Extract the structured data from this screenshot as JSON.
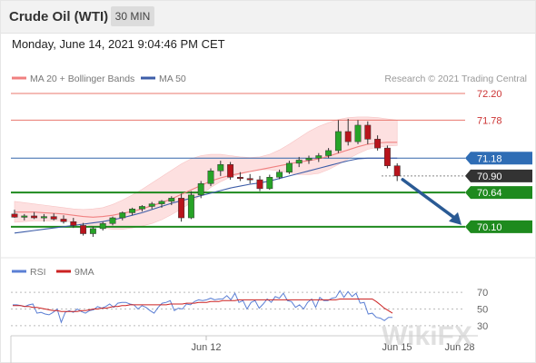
{
  "header": {
    "title": "Crude Oil (WTI)",
    "timeframe": "30 MIN"
  },
  "datetime": "Monday, June 14, 2021 9:04:46 PM CET",
  "legend": {
    "ma20": "MA 20 + Bollinger Bands",
    "ma50": "MA 50",
    "credit": "Research © 2021 Trading Central",
    "rsi": "RSI",
    "ma9": "9MA"
  },
  "watermark": "WikiFX",
  "colors": {
    "up": "#27a327",
    "down": "#b8141c",
    "resistance": "#e8776e",
    "support": "#1e8a1e",
    "ma20": "#f08080",
    "ma50": "#3d5da8",
    "band": "#fde0e0",
    "current": "#333333",
    "pivot": "#3366aa",
    "arrow": "#2a5a94",
    "rsi": "#5b7fd4",
    "ma9": "#cc2222"
  },
  "chart_data": [
    {
      "type": "candlestick",
      "x_ticks": [
        "Jun 12",
        "Jun 15",
        "Jun 28"
      ],
      "ylim": [
        69.84,
        72.3
      ],
      "levels": [
        {
          "value": 72.2,
          "label": "72.20",
          "kind": "resistance"
        },
        {
          "value": 71.78,
          "label": "71.78",
          "kind": "resistance"
        },
        {
          "value": 71.18,
          "label": "71.18",
          "kind": "pivot"
        },
        {
          "value": 70.9,
          "label": "70.90",
          "kind": "current"
        },
        {
          "value": 70.64,
          "label": "70.64",
          "kind": "support"
        },
        {
          "value": 70.1,
          "label": "70.10",
          "kind": "support"
        }
      ],
      "series": [
        {
          "name": "MA 20 + Bollinger Bands",
          "ma": [
            70.33,
            70.33,
            70.33,
            70.32,
            70.31,
            70.3,
            70.28,
            70.26,
            70.25,
            70.26,
            70.28,
            70.31,
            70.34,
            70.38,
            70.43,
            70.48,
            70.54,
            70.61,
            70.68,
            70.75,
            70.82,
            70.87,
            70.91,
            70.94,
            70.97,
            71.0,
            71.03,
            71.06,
            71.09,
            71.12,
            71.14,
            71.17,
            71.21,
            71.26,
            71.31,
            71.36,
            71.4,
            71.42,
            71.43,
            71.43
          ],
          "upper": [
            70.5,
            70.48,
            70.46,
            70.44,
            70.42,
            70.4,
            70.38,
            70.37,
            70.38,
            70.4,
            70.45,
            70.52,
            70.6,
            70.69,
            70.79,
            70.89,
            70.99,
            71.09,
            71.17,
            71.22,
            71.24,
            71.24,
            71.22,
            71.2,
            71.19,
            71.2,
            71.24,
            71.31,
            71.4,
            71.5,
            71.6,
            71.68,
            71.74,
            71.79,
            71.82,
            71.83,
            71.83,
            71.82,
            71.8,
            71.78
          ],
          "lower": [
            70.17,
            70.18,
            70.19,
            70.19,
            70.19,
            70.19,
            70.17,
            70.14,
            70.11,
            70.08,
            70.06,
            70.06,
            70.08,
            70.11,
            70.15,
            70.21,
            70.29,
            70.38,
            70.48,
            70.6,
            70.72,
            70.81,
            70.88,
            70.93,
            70.97,
            71.0,
            71.0,
            70.98,
            70.95,
            70.92,
            70.92,
            70.94,
            71.0,
            71.08,
            71.17,
            71.25,
            71.32,
            71.35,
            71.37,
            71.38
          ]
        },
        {
          "name": "MA 50",
          "values": [
            70.0,
            70.02,
            70.04,
            70.06,
            70.08,
            70.1,
            70.12,
            70.14,
            70.16,
            70.18,
            70.21,
            70.24,
            70.28,
            70.32,
            70.37,
            70.42,
            70.47,
            70.51,
            70.55,
            70.59,
            70.63,
            70.67,
            70.71,
            70.74,
            70.77,
            70.79,
            70.82,
            70.86,
            70.9,
            70.94,
            70.98,
            71.02,
            71.06,
            71.1,
            71.14,
            71.17,
            71.18,
            71.18,
            71.18,
            71.18
          ]
        }
      ],
      "candles": [
        {
          "o": 70.3,
          "h": 70.37,
          "l": 70.24,
          "c": 70.25
        },
        {
          "o": 70.25,
          "h": 70.3,
          "l": 70.2,
          "c": 70.27
        },
        {
          "o": 70.27,
          "h": 70.33,
          "l": 70.22,
          "c": 70.24
        },
        {
          "o": 70.24,
          "h": 70.3,
          "l": 70.18,
          "c": 70.26
        },
        {
          "o": 70.26,
          "h": 70.31,
          "l": 70.2,
          "c": 70.22
        },
        {
          "o": 70.22,
          "h": 70.28,
          "l": 70.15,
          "c": 70.18
        },
        {
          "o": 70.18,
          "h": 70.24,
          "l": 70.08,
          "c": 70.12
        },
        {
          "o": 70.12,
          "h": 70.16,
          "l": 69.96,
          "c": 69.99
        },
        {
          "o": 69.99,
          "h": 70.1,
          "l": 69.94,
          "c": 70.07
        },
        {
          "o": 70.07,
          "h": 70.18,
          "l": 70.04,
          "c": 70.15
        },
        {
          "o": 70.15,
          "h": 70.26,
          "l": 70.12,
          "c": 70.24
        },
        {
          "o": 70.24,
          "h": 70.34,
          "l": 70.2,
          "c": 70.32
        },
        {
          "o": 70.32,
          "h": 70.4,
          "l": 70.28,
          "c": 70.38
        },
        {
          "o": 70.38,
          "h": 70.44,
          "l": 70.34,
          "c": 70.42
        },
        {
          "o": 70.42,
          "h": 70.49,
          "l": 70.38,
          "c": 70.46
        },
        {
          "o": 70.46,
          "h": 70.52,
          "l": 70.4,
          "c": 70.5
        },
        {
          "o": 70.5,
          "h": 70.58,
          "l": 70.44,
          "c": 70.55
        },
        {
          "o": 70.55,
          "h": 70.62,
          "l": 70.18,
          "c": 70.24
        },
        {
          "o": 70.24,
          "h": 70.66,
          "l": 70.22,
          "c": 70.6
        },
        {
          "o": 70.6,
          "h": 70.82,
          "l": 70.55,
          "c": 70.78
        },
        {
          "o": 70.78,
          "h": 71.02,
          "l": 70.74,
          "c": 70.98
        },
        {
          "o": 70.98,
          "h": 71.14,
          "l": 70.9,
          "c": 71.08
        },
        {
          "o": 71.08,
          "h": 71.12,
          "l": 70.84,
          "c": 70.88
        },
        {
          "o": 70.88,
          "h": 70.96,
          "l": 70.82,
          "c": 70.86
        },
        {
          "o": 70.86,
          "h": 70.93,
          "l": 70.78,
          "c": 70.84
        },
        {
          "o": 70.84,
          "h": 70.9,
          "l": 70.66,
          "c": 70.7
        },
        {
          "o": 70.7,
          "h": 70.92,
          "l": 70.68,
          "c": 70.88
        },
        {
          "o": 70.88,
          "h": 71.0,
          "l": 70.85,
          "c": 70.96
        },
        {
          "o": 70.96,
          "h": 71.14,
          "l": 70.93,
          "c": 71.1
        },
        {
          "o": 71.1,
          "h": 71.2,
          "l": 71.04,
          "c": 71.15
        },
        {
          "o": 71.15,
          "h": 71.22,
          "l": 71.09,
          "c": 71.18
        },
        {
          "o": 71.18,
          "h": 71.26,
          "l": 71.12,
          "c": 71.22
        },
        {
          "o": 71.22,
          "h": 71.34,
          "l": 71.18,
          "c": 71.3
        },
        {
          "o": 71.3,
          "h": 71.78,
          "l": 71.26,
          "c": 71.6
        },
        {
          "o": 71.6,
          "h": 71.8,
          "l": 71.38,
          "c": 71.44
        },
        {
          "o": 71.44,
          "h": 71.78,
          "l": 71.4,
          "c": 71.7
        },
        {
          "o": 71.7,
          "h": 71.76,
          "l": 71.4,
          "c": 71.48
        },
        {
          "o": 71.48,
          "h": 71.54,
          "l": 71.3,
          "c": 71.34
        },
        {
          "o": 71.34,
          "h": 71.38,
          "l": 71.02,
          "c": 71.06
        },
        {
          "o": 71.06,
          "h": 71.1,
          "l": 70.82,
          "c": 70.9
        }
      ]
    },
    {
      "type": "line",
      "x_ticks": [
        "Jun 12",
        "Jun 15",
        "Jun 28"
      ],
      "yticks": [
        70,
        50,
        30
      ],
      "ylim": [
        20,
        80
      ],
      "series": [
        {
          "name": "RSI",
          "values": [
            55,
            55,
            54,
            53,
            55,
            56,
            45,
            46,
            44,
            43,
            46,
            50,
            34,
            46,
            48,
            46,
            50,
            47,
            45,
            48,
            49,
            53,
            51,
            53,
            56,
            52,
            57,
            58,
            58,
            56,
            55,
            50,
            54,
            52,
            48,
            45,
            52,
            57,
            58,
            60,
            48,
            51,
            50,
            56,
            55,
            59,
            61,
            60,
            61,
            63,
            61,
            62,
            62,
            66,
            61,
            69,
            58,
            60,
            50,
            58,
            60,
            51,
            56,
            62,
            58,
            65,
            63,
            69,
            60,
            59,
            52,
            55,
            50,
            58,
            62,
            52,
            64,
            60,
            60,
            63,
            64,
            72,
            64,
            71,
            65,
            69,
            57,
            58,
            44,
            45,
            40,
            39,
            36,
            40,
            40
          ]
        },
        {
          "name": "9MA",
          "values": [
            54,
            54,
            54,
            53,
            53,
            52,
            52,
            51,
            50,
            49,
            48,
            48,
            47,
            47,
            47,
            47,
            47,
            48,
            48,
            49,
            50,
            50,
            51,
            51,
            52,
            53,
            53,
            54,
            54,
            55,
            55,
            55,
            55,
            55,
            55,
            55,
            55,
            55,
            55,
            56,
            56,
            56,
            56,
            57,
            57,
            57,
            58,
            58,
            58,
            59,
            59,
            59,
            60,
            60,
            60,
            60,
            61,
            61,
            61,
            61,
            61,
            61,
            61,
            61,
            61,
            61,
            61,
            61,
            61,
            61,
            61,
            61,
            61,
            61,
            61,
            61,
            61,
            61,
            61,
            61,
            61,
            62,
            62,
            62,
            62,
            62,
            62,
            62,
            62,
            62,
            59,
            55,
            51,
            48,
            45
          ]
        }
      ]
    }
  ]
}
